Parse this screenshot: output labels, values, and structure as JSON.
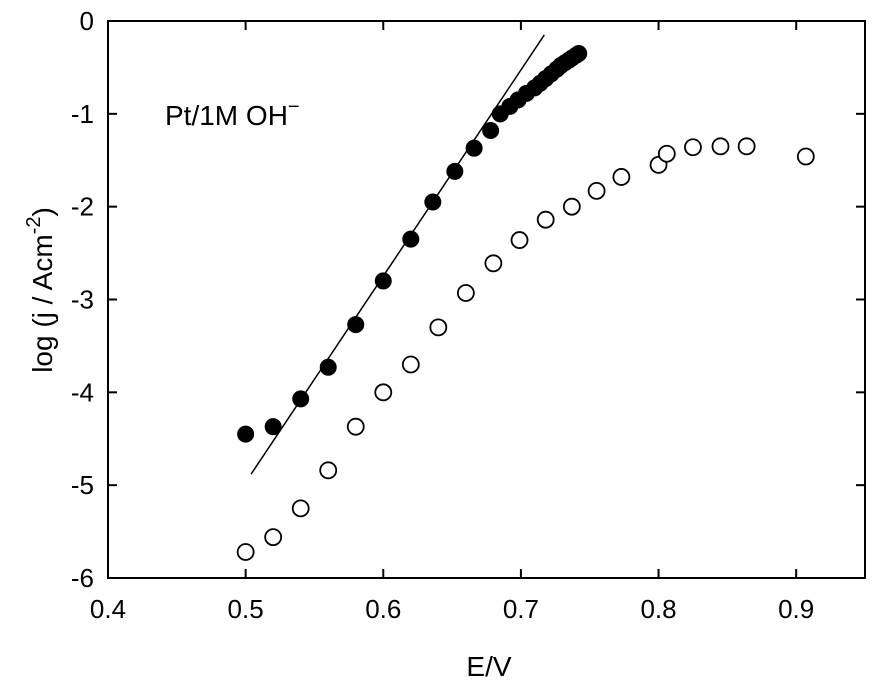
{
  "chart_data": {
    "type": "scatter",
    "annotation": {
      "main": "Pt/1M OH",
      "superscript": "−"
    },
    "xlabel": "E/V",
    "ylabel": {
      "main": "log (j / Acm",
      "superscript": "-2",
      "close": ")"
    },
    "xlim": [
      0.4,
      0.95
    ],
    "ylim": [
      -6,
      0
    ],
    "xticks": [
      0.4,
      0.5,
      0.6,
      0.7,
      0.8,
      0.9
    ],
    "xtick_labels": [
      "0.4",
      "0.5",
      "0.6",
      "0.7",
      "0.8",
      "0.9"
    ],
    "yticks": [
      0,
      -1,
      -2,
      -3,
      -4,
      -5,
      -6
    ],
    "ytick_labels": [
      "0",
      "-1",
      "-2",
      "-3",
      "-4",
      "-5",
      "-6"
    ],
    "grid": false,
    "series": [
      {
        "marker": "filled-circle",
        "color": "#000000",
        "x": [
          0.5,
          0.52,
          0.54,
          0.56,
          0.58,
          0.6,
          0.62,
          0.636,
          0.652,
          0.666,
          0.678,
          0.685,
          0.692,
          0.698,
          0.704,
          0.71,
          0.714,
          0.718,
          0.722,
          0.726,
          0.729,
          0.732,
          0.735,
          0.737,
          0.74,
          0.742
        ],
        "y": [
          -4.45,
          -4.37,
          -4.07,
          -3.73,
          -3.27,
          -2.8,
          -2.35,
          -1.95,
          -1.62,
          -1.37,
          -1.18,
          -1.0,
          -0.92,
          -0.85,
          -0.78,
          -0.72,
          -0.67,
          -0.62,
          -0.57,
          -0.52,
          -0.48,
          -0.45,
          -0.42,
          -0.4,
          -0.37,
          -0.35
        ]
      },
      {
        "marker": "open-circle",
        "color": "#000000",
        "x": [
          0.5,
          0.52,
          0.54,
          0.56,
          0.58,
          0.6,
          0.62,
          0.64,
          0.66,
          0.68,
          0.699,
          0.718,
          0.737,
          0.755,
          0.773,
          0.8,
          0.806,
          0.825,
          0.845,
          0.864,
          0.907
        ],
        "y": [
          -5.72,
          -5.56,
          -5.25,
          -4.84,
          -4.37,
          -4.0,
          -3.7,
          -3.3,
          -2.93,
          -2.61,
          -2.36,
          -2.14,
          -2.0,
          -1.83,
          -1.68,
          -1.55,
          -1.43,
          -1.36,
          -1.35,
          -1.35,
          -1.46
        ]
      }
    ],
    "fit_line": {
      "color": "#000000",
      "x": [
        0.504,
        0.717
      ],
      "y": [
        -4.88,
        -0.15
      ]
    }
  }
}
